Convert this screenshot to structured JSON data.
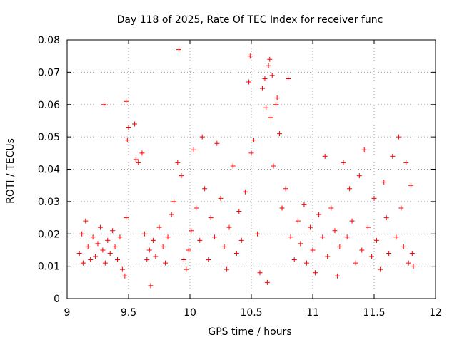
{
  "chart_data": {
    "type": "scatter",
    "title": "Day 118 of 2025, Rate Of TEC Index for receiver func",
    "xlabel": "GPS time / hours",
    "ylabel": "ROTI / TECUs",
    "xlim": [
      9,
      12
    ],
    "ylim": [
      0,
      0.08
    ],
    "x_ticks": [
      9,
      9.5,
      10,
      10.5,
      11,
      11.5,
      12
    ],
    "x_tick_labels": [
      "9",
      "9.5",
      "10",
      "10.5",
      "11",
      "11.5",
      "12"
    ],
    "y_ticks": [
      0,
      0.01,
      0.02,
      0.03,
      0.04,
      0.05,
      0.06,
      0.07,
      0.08
    ],
    "y_tick_labels": [
      "0",
      "0.01",
      "0.02",
      "0.03",
      "0.04",
      "0.05",
      "0.06",
      "0.07",
      "0.08"
    ],
    "grid": true,
    "marker": "+",
    "color": "#ff0000",
    "series": [
      {
        "name": "ROTI",
        "points": [
          [
            9.1,
            0.014
          ],
          [
            9.12,
            0.02
          ],
          [
            9.13,
            0.011
          ],
          [
            9.15,
            0.024
          ],
          [
            9.17,
            0.016
          ],
          [
            9.19,
            0.012
          ],
          [
            9.21,
            0.019
          ],
          [
            9.23,
            0.013
          ],
          [
            9.25,
            0.017
          ],
          [
            9.27,
            0.022
          ],
          [
            9.29,
            0.015
          ],
          [
            9.31,
            0.011
          ],
          [
            9.33,
            0.018
          ],
          [
            9.35,
            0.014
          ],
          [
            9.37,
            0.021
          ],
          [
            9.39,
            0.016
          ],
          [
            9.41,
            0.012
          ],
          [
            9.43,
            0.019
          ],
          [
            9.45,
            0.009
          ],
          [
            9.47,
            0.007
          ],
          [
            9.48,
            0.025
          ],
          [
            9.49,
            0.049
          ],
          [
            9.5,
            0.053
          ],
          [
            9.3,
            0.06
          ],
          [
            9.48,
            0.061
          ],
          [
            9.55,
            0.054
          ],
          [
            9.56,
            0.043
          ],
          [
            9.58,
            0.042
          ],
          [
            9.61,
            0.045
          ],
          [
            9.63,
            0.02
          ],
          [
            9.65,
            0.012
          ],
          [
            9.67,
            0.015
          ],
          [
            9.68,
            0.004
          ],
          [
            9.7,
            0.018
          ],
          [
            9.72,
            0.013
          ],
          [
            9.75,
            0.022
          ],
          [
            9.78,
            0.016
          ],
          [
            9.8,
            0.011
          ],
          [
            9.82,
            0.019
          ],
          [
            9.85,
            0.026
          ],
          [
            9.87,
            0.03
          ],
          [
            9.9,
            0.042
          ],
          [
            9.91,
            0.077
          ],
          [
            9.93,
            0.038
          ],
          [
            9.95,
            0.012
          ],
          [
            9.97,
            0.009
          ],
          [
            9.99,
            0.015
          ],
          [
            10.01,
            0.021
          ],
          [
            10.03,
            0.046
          ],
          [
            10.05,
            0.028
          ],
          [
            10.08,
            0.018
          ],
          [
            10.1,
            0.05
          ],
          [
            10.12,
            0.034
          ],
          [
            10.15,
            0.012
          ],
          [
            10.17,
            0.025
          ],
          [
            10.2,
            0.019
          ],
          [
            10.22,
            0.048
          ],
          [
            10.25,
            0.031
          ],
          [
            10.28,
            0.016
          ],
          [
            10.3,
            0.009
          ],
          [
            10.32,
            0.022
          ],
          [
            10.35,
            0.041
          ],
          [
            10.38,
            0.014
          ],
          [
            10.4,
            0.027
          ],
          [
            10.42,
            0.018
          ],
          [
            10.45,
            0.033
          ],
          [
            10.48,
            0.067
          ],
          [
            10.49,
            0.075
          ],
          [
            10.5,
            0.045
          ],
          [
            10.52,
            0.049
          ],
          [
            10.55,
            0.02
          ],
          [
            10.57,
            0.008
          ],
          [
            10.59,
            0.065
          ],
          [
            10.61,
            0.068
          ],
          [
            10.62,
            0.059
          ],
          [
            10.63,
            0.005
          ],
          [
            10.64,
            0.072
          ],
          [
            10.65,
            0.074
          ],
          [
            10.66,
            0.056
          ],
          [
            10.67,
            0.069
          ],
          [
            10.68,
            0.041
          ],
          [
            10.7,
            0.06
          ],
          [
            10.71,
            0.062
          ],
          [
            10.73,
            0.051
          ],
          [
            10.75,
            0.028
          ],
          [
            10.78,
            0.034
          ],
          [
            10.8,
            0.068
          ],
          [
            10.82,
            0.019
          ],
          [
            10.85,
            0.012
          ],
          [
            10.88,
            0.024
          ],
          [
            10.9,
            0.017
          ],
          [
            10.93,
            0.029
          ],
          [
            10.95,
            0.011
          ],
          [
            10.98,
            0.022
          ],
          [
            11.0,
            0.015
          ],
          [
            11.02,
            0.008
          ],
          [
            11.05,
            0.026
          ],
          [
            11.08,
            0.019
          ],
          [
            11.1,
            0.044
          ],
          [
            11.12,
            0.013
          ],
          [
            11.15,
            0.028
          ],
          [
            11.18,
            0.021
          ],
          [
            11.2,
            0.007
          ],
          [
            11.22,
            0.016
          ],
          [
            11.25,
            0.042
          ],
          [
            11.28,
            0.019
          ],
          [
            11.3,
            0.034
          ],
          [
            11.32,
            0.024
          ],
          [
            11.35,
            0.011
          ],
          [
            11.38,
            0.038
          ],
          [
            11.4,
            0.015
          ],
          [
            11.42,
            0.046
          ],
          [
            11.45,
            0.022
          ],
          [
            11.48,
            0.013
          ],
          [
            11.5,
            0.031
          ],
          [
            11.52,
            0.018
          ],
          [
            11.55,
            0.009
          ],
          [
            11.58,
            0.036
          ],
          [
            11.6,
            0.025
          ],
          [
            11.62,
            0.014
          ],
          [
            11.65,
            0.044
          ],
          [
            11.68,
            0.019
          ],
          [
            11.7,
            0.05
          ],
          [
            11.72,
            0.028
          ],
          [
            11.74,
            0.016
          ],
          [
            11.76,
            0.042
          ],
          [
            11.78,
            0.011
          ],
          [
            11.8,
            0.035
          ],
          [
            11.81,
            0.014
          ],
          [
            11.82,
            0.01
          ]
        ]
      }
    ]
  }
}
